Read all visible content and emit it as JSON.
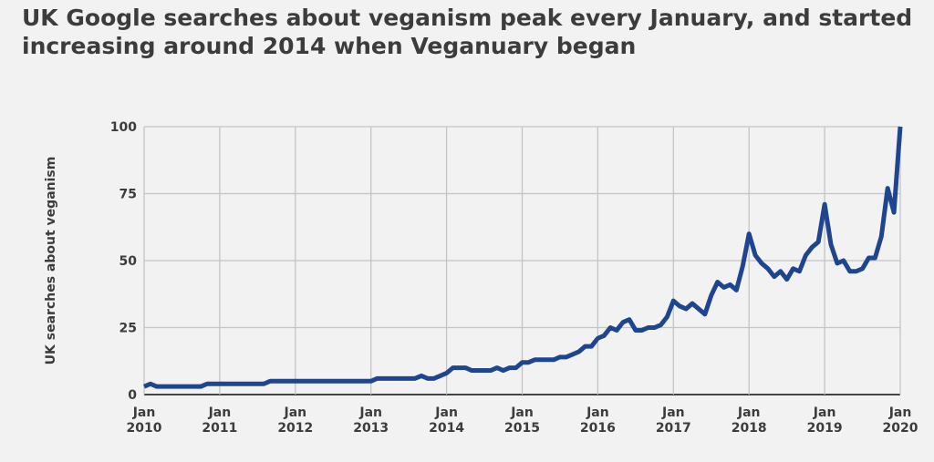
{
  "chart_data": {
    "type": "line",
    "title": "UK Google searches about veganism peak every January, and started increasing around 2014 when Veganuary began",
    "xlabel": "",
    "ylabel": "UK searches about veganism",
    "ylim": [
      0,
      100
    ],
    "yticks": [
      "0",
      "25",
      "50",
      "75",
      "100"
    ],
    "xticks": [
      [
        "Jan",
        "2010"
      ],
      [
        "Jan",
        "2011"
      ],
      [
        "Jan",
        "2012"
      ],
      [
        "Jan",
        "2013"
      ],
      [
        "Jan",
        "2014"
      ],
      [
        "Jan",
        "2015"
      ],
      [
        "Jan",
        "2016"
      ],
      [
        "Jan",
        "2017"
      ],
      [
        "Jan",
        "2018"
      ],
      [
        "Jan",
        "2019"
      ],
      [
        "Jan",
        "2020"
      ]
    ],
    "x_start": "Jan 2010",
    "x_end": "Jan 2020",
    "frequency": "monthly",
    "grid": true,
    "line_color": "#1f4590",
    "series": [
      {
        "name": "UK searches about veganism",
        "values": [
          3,
          4,
          3,
          3,
          3,
          3,
          3,
          3,
          3,
          3,
          4,
          4,
          4,
          4,
          4,
          4,
          4,
          4,
          4,
          4,
          5,
          5,
          5,
          5,
          5,
          5,
          5,
          5,
          5,
          5,
          5,
          5,
          5,
          5,
          5,
          5,
          5,
          6,
          6,
          6,
          6,
          6,
          6,
          6,
          7,
          6,
          6,
          7,
          8,
          10,
          10,
          10,
          9,
          9,
          9,
          9,
          10,
          9,
          10,
          10,
          12,
          12,
          13,
          13,
          13,
          13,
          14,
          14,
          15,
          16,
          18,
          18,
          21,
          22,
          25,
          24,
          27,
          28,
          24,
          24,
          25,
          25,
          26,
          29,
          35,
          33,
          32,
          34,
          32,
          30,
          37,
          42,
          40,
          41,
          39,
          48,
          60,
          52,
          49,
          47,
          44,
          46,
          43,
          47,
          46,
          52,
          55,
          57,
          71,
          56,
          49,
          50,
          46,
          46,
          47,
          51,
          51,
          59,
          77,
          68,
          100
        ]
      }
    ]
  }
}
